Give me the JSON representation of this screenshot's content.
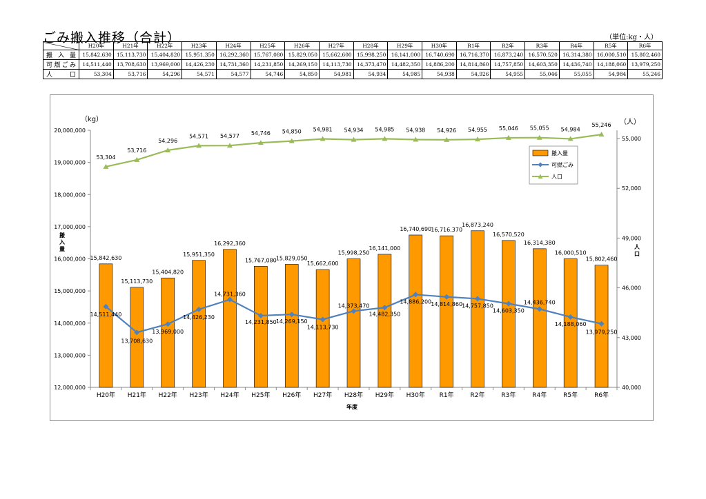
{
  "page": {
    "title": "ごみ搬入推移（合計）",
    "unit": "（単位:kg・人）"
  },
  "table": {
    "years": [
      "H20年",
      "H21年",
      "H22年",
      "H23年",
      "H24年",
      "H25年",
      "H26年",
      "H27年",
      "H28年",
      "H29年",
      "H30年",
      "R1年",
      "R2年",
      "R3年",
      "R4年",
      "R5年",
      "R6年"
    ],
    "rows": [
      {
        "label": "搬入量",
        "values": [
          "15,842,630",
          "15,113,730",
          "15,404,820",
          "15,951,350",
          "16,292,360",
          "15,767,080",
          "15,829,050",
          "15,662,600",
          "15,998,250",
          "16,141,000",
          "16,740,690",
          "16,716,370",
          "16,873,240",
          "16,570,520",
          "16,314,380",
          "16,000,510",
          "15,802,460"
        ]
      },
      {
        "label": "可燃ごみ",
        "values": [
          "14,511,440",
          "13,708,630",
          "13,969,000",
          "14,426,230",
          "14,731,360",
          "14,231,850",
          "14,269,150",
          "14,113,730",
          "14,373,470",
          "14,482,350",
          "14,886,200",
          "14,814,860",
          "14,757,850",
          "14,603,350",
          "14,436,740",
          "14,188,060",
          "13,979,250"
        ]
      },
      {
        "label": "人口",
        "values": [
          "53,304",
          "53,716",
          "54,296",
          "54,571",
          "54,577",
          "54,746",
          "54,850",
          "54,981",
          "54,934",
          "54,985",
          "54,938",
          "54,926",
          "54,955",
          "55,046",
          "55,055",
          "54,984",
          "55,246"
        ]
      }
    ]
  },
  "chart_data": {
    "type": "bar",
    "categories": [
      "H20年",
      "H21年",
      "H22年",
      "H23年",
      "H24年",
      "H25年",
      "H26年",
      "H27年",
      "H28年",
      "H29年",
      "H30年",
      "R1年",
      "R2年",
      "R3年",
      "R4年",
      "R5年",
      "R6年"
    ],
    "series": [
      {
        "name": "搬入量",
        "type": "bar",
        "axis": "left",
        "color": "#FF9900",
        "values": [
          15842630,
          15113730,
          15404820,
          15951350,
          16292360,
          15767080,
          15829050,
          15662600,
          15998250,
          16141000,
          16740690,
          16716370,
          16873240,
          16570520,
          16314380,
          16000510,
          15802460
        ],
        "labels": [
          "15,842,630",
          "15,113,730",
          "15,404,820",
          "15,951,350",
          "16,292,360",
          "15,767,080",
          "15,829,050",
          "15,662,600",
          "15,998,250",
          "16,141,000",
          "16,740,690",
          "16,716,370",
          "16,873,240",
          "16,570,520",
          "16,314,380",
          "16,000,510",
          "15,802,460"
        ]
      },
      {
        "name": "可燃ごみ",
        "type": "line",
        "axis": "left",
        "color": "#4F81BD",
        "values": [
          14511440,
          13708630,
          13969000,
          14426230,
          14731360,
          14231850,
          14269150,
          14113730,
          14373470,
          14482350,
          14886200,
          14814860,
          14757850,
          14603350,
          14436740,
          14188060,
          13979250
        ],
        "labels": [
          "14,511,440",
          "13,708,630",
          "13,969,000",
          "14,426,230",
          "14,731,360",
          "14,231,850",
          "14,269,150",
          "14,113,730",
          "14,373,470",
          "14,482,350",
          "14,886,200",
          "14,814,860",
          "14,757,850",
          "14,603,350",
          "14,436,740",
          "14,188,060",
          "13,979,250"
        ]
      },
      {
        "name": "人口",
        "type": "line",
        "axis": "right",
        "color": "#9BBB59",
        "values": [
          53304,
          53716,
          54296,
          54571,
          54577,
          54746,
          54850,
          54981,
          54934,
          54985,
          54938,
          54926,
          54955,
          55046,
          55055,
          54984,
          55246
        ],
        "labels": [
          "53,304",
          "53,716",
          "54,296",
          "54,571",
          "54,577",
          "54,746",
          "54,850",
          "54,981",
          "54,934",
          "54,985",
          "54,938",
          "54,926",
          "54,955",
          "55,046",
          "55,055",
          "54,984",
          "55,246"
        ]
      }
    ],
    "xlabel": "年度",
    "ylabel": "搬入量",
    "ylabel_right": "人口",
    "yunit": "（kg）",
    "yunit_right": "（人）",
    "ylim": [
      12000000,
      20000000
    ],
    "yticks": [
      12000000,
      13000000,
      14000000,
      15000000,
      16000000,
      17000000,
      18000000,
      19000000,
      20000000
    ],
    "ytick_labels": [
      "12,000,000",
      "13,000,000",
      "14,000,000",
      "15,000,000",
      "16,000,000",
      "17,000,000",
      "18,000,000",
      "19,000,000",
      "20,000,000"
    ],
    "ylim_right": [
      40000,
      55500
    ],
    "yticks_right": [
      40000,
      43000,
      46000,
      49000,
      52000,
      55000
    ],
    "ytick_labels_right": [
      "40,000",
      "43,000",
      "46,000",
      "49,000",
      "52,000",
      "55,000"
    ],
    "grid": false,
    "legend": "top-right"
  }
}
